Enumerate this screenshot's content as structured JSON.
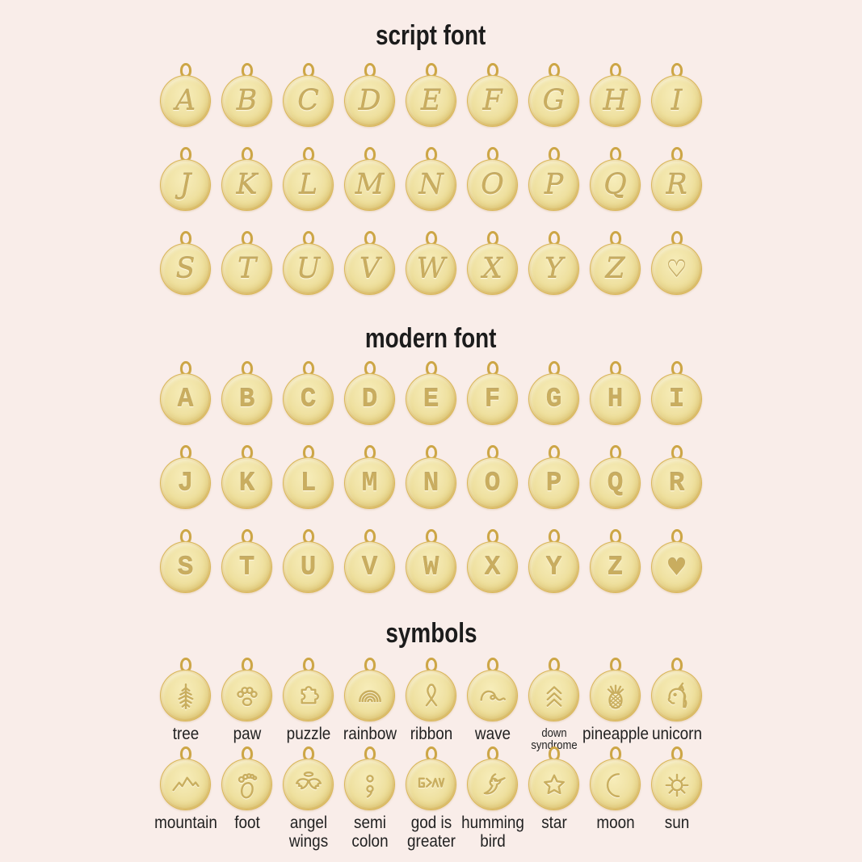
{
  "page": {
    "background_color": "#f9ede9",
    "charm_gold_color": "#eedfa0",
    "charm_rim_color": "#d8b254",
    "engraving_color": "#c9ae5f",
    "label_color": "#222222",
    "title_color": "#1c1c1c"
  },
  "sections": [
    {
      "id": "script",
      "title": "script font",
      "letter_style": "script",
      "rows": [
        [
          "A",
          "B",
          "C",
          "D",
          "E",
          "F",
          "G",
          "H",
          "I"
        ],
        [
          "J",
          "K",
          "L",
          "M",
          "N",
          "O",
          "P",
          "Q",
          "R"
        ],
        [
          "S",
          "T",
          "U",
          "V",
          "W",
          "X",
          "Y",
          "Z",
          "♡"
        ]
      ]
    },
    {
      "id": "modern",
      "title": "modern font",
      "letter_style": "modern",
      "rows": [
        [
          "A",
          "B",
          "C",
          "D",
          "E",
          "F",
          "G",
          "H",
          "I"
        ],
        [
          "J",
          "K",
          "L",
          "M",
          "N",
          "O",
          "P",
          "Q",
          "R"
        ],
        [
          "S",
          "T",
          "U",
          "V",
          "W",
          "X",
          "Y",
          "Z",
          "♥"
        ]
      ]
    },
    {
      "id": "symbols",
      "title": "symbols",
      "rows": [
        [
          {
            "icon": "tree-icon",
            "label": "tree"
          },
          {
            "icon": "paw-icon",
            "label": "paw"
          },
          {
            "icon": "puzzle-icon",
            "label": "puzzle"
          },
          {
            "icon": "rainbow-icon",
            "label": "rainbow"
          },
          {
            "icon": "ribbon-icon",
            "label": "ribbon"
          },
          {
            "icon": "wave-icon",
            "label": "wave"
          },
          {
            "icon": "down-syndrome-icon",
            "label": "down\nsyndrome",
            "small_label": true
          },
          {
            "icon": "pineapple-icon",
            "label": "pineapple"
          },
          {
            "icon": "unicorn-icon",
            "label": "unicorn"
          }
        ],
        [
          {
            "icon": "mountain-icon",
            "label": "mountain"
          },
          {
            "icon": "foot-icon",
            "label": "foot"
          },
          {
            "icon": "angel-wings-icon",
            "label": "angel\nwings"
          },
          {
            "icon": "semicolon-icon",
            "label": "semi\ncolon"
          },
          {
            "icon": "god-is-greater-icon",
            "label": "god is\ngreater"
          },
          {
            "icon": "hummingbird-icon",
            "label": "humming\nbird"
          },
          {
            "icon": "star-icon",
            "label": "star"
          },
          {
            "icon": "moon-icon",
            "label": "moon"
          },
          {
            "icon": "sun-icon",
            "label": "sun"
          }
        ]
      ]
    }
  ]
}
